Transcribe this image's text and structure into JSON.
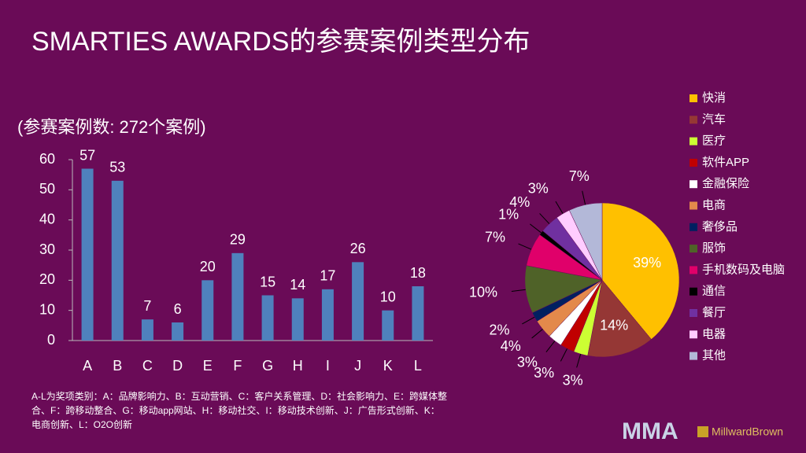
{
  "slide_title": "SMARTIES AWARDS的参赛案例类型分布",
  "footnote": [
    "A-L为奖项类别：A：品牌影响力、B：互动营销、C：客户关系管理、D：社会影响力、E：跨媒体整",
    "合、F：跨移动整合、G：移动app网站、H：移动社交、I：移动技术创新、J：广告形式创新、K：",
    "电商创新、L：O2O创新"
  ],
  "logos": [
    "MMA",
    "MillwardBrown"
  ],
  "chart_data": [
    {
      "type": "bar",
      "subtitle": "(参赛案例数: 272个案例)",
      "categories": [
        "A",
        "B",
        "C",
        "D",
        "E",
        "F",
        "G",
        "H",
        "I",
        "J",
        "K",
        "L"
      ],
      "values": [
        57,
        53,
        7,
        6,
        20,
        29,
        15,
        14,
        17,
        26,
        10,
        18
      ],
      "color": "#4f81bd",
      "ylim": [
        0,
        60
      ],
      "yticks": [
        0,
        10,
        20,
        30,
        40,
        50,
        60
      ],
      "grid": false
    },
    {
      "type": "pie",
      "categories": [
        "快消",
        "汽车",
        "医疗",
        "软件APP",
        "金融保险",
        "电商",
        "奢侈品",
        "服饰",
        "手机数码及电脑",
        "通信",
        "餐厅",
        "电器",
        "其他"
      ],
      "values": [
        39,
        14,
        3,
        3,
        3,
        4,
        2,
        10,
        7,
        1,
        4,
        3,
        7
      ],
      "value_labels": [
        "39%",
        "14%",
        "3%",
        "3%",
        "3%",
        "4%",
        "2%",
        "10%",
        "7%",
        "1%",
        "4%",
        "3%",
        "7%"
      ],
      "colors": [
        "#ffc000",
        "#953735",
        "#ccff33",
        "#c00000",
        "#ffffff",
        "#e3894b",
        "#002060",
        "#4f6228",
        "#e0006a",
        "#000000",
        "#7030a0",
        "#ffccff",
        "#b3b8d8"
      ],
      "legend": "right"
    }
  ]
}
